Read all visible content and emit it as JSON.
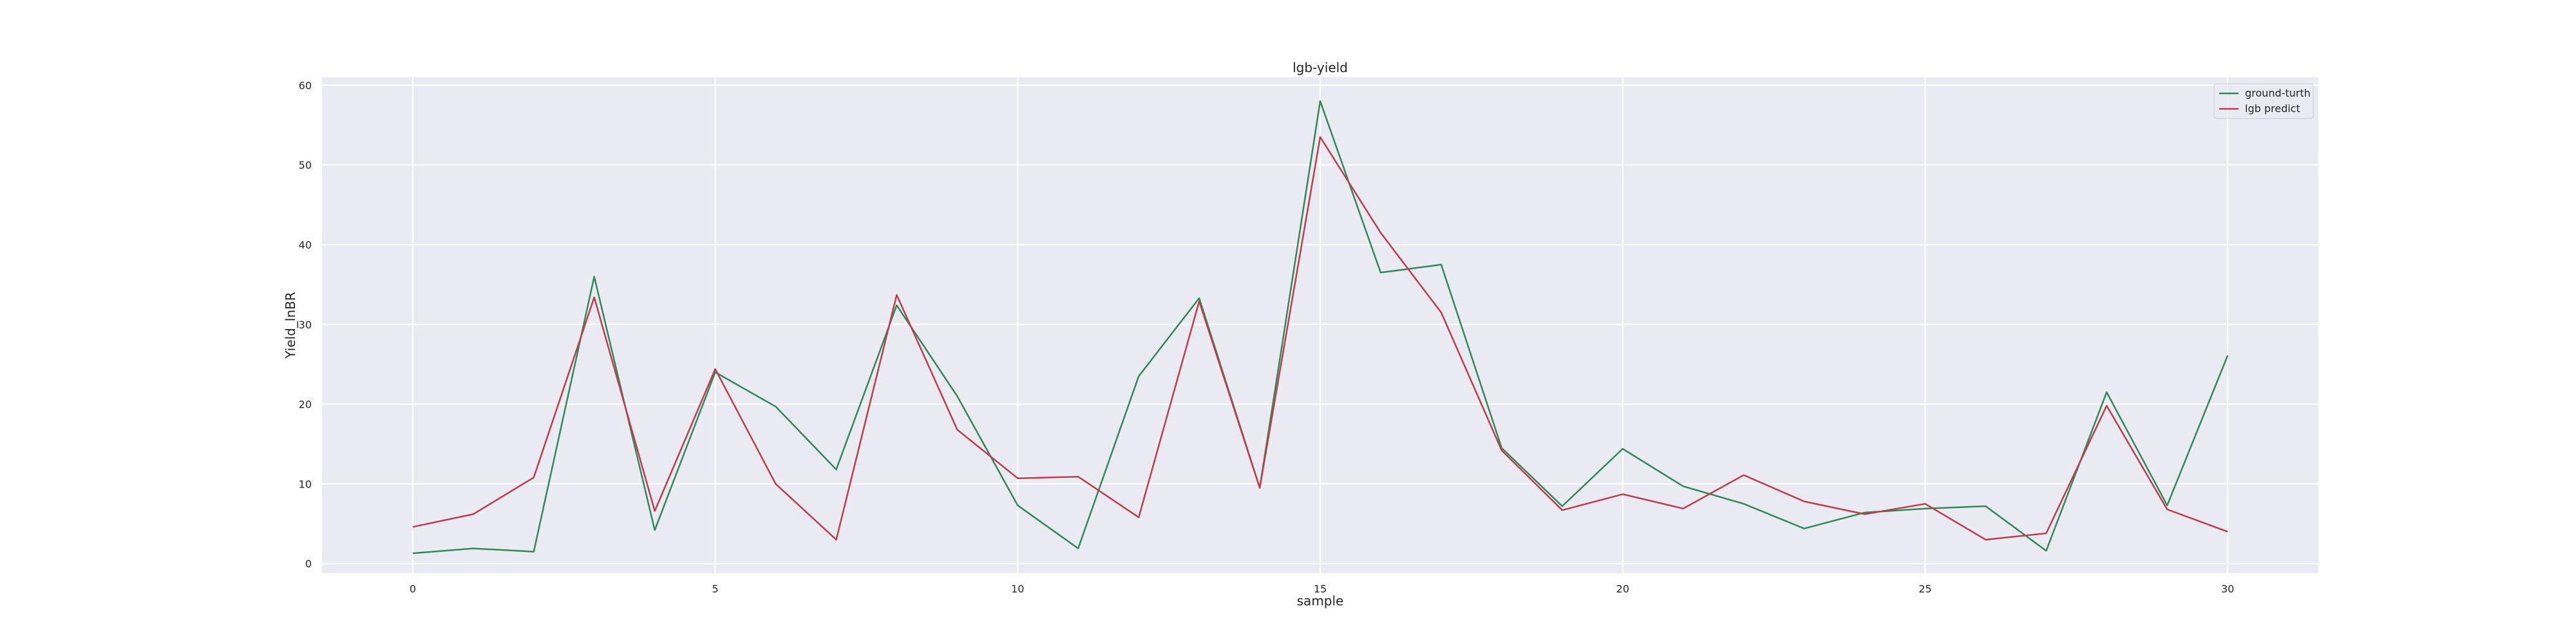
{
  "chart_data": {
    "type": "line",
    "title": "lgb-yield",
    "xlabel": "sample",
    "ylabel": "Yield_lnBR",
    "x": [
      0,
      1,
      2,
      3,
      4,
      5,
      6,
      7,
      8,
      9,
      10,
      11,
      12,
      13,
      14,
      15,
      16,
      17,
      18,
      19,
      20,
      21,
      22,
      23,
      24,
      25,
      26,
      27,
      28,
      29,
      30
    ],
    "xlim": [
      -1.5,
      31.5
    ],
    "ylim": [
      -1.2,
      61.0
    ],
    "xticks": [
      0,
      5,
      10,
      15,
      20,
      25,
      30
    ],
    "yticks": [
      0,
      10,
      20,
      30,
      40,
      50,
      60
    ],
    "grid": true,
    "legend_position": "top-right",
    "series": [
      {
        "name": "ground-turth",
        "color": "#2e8b57",
        "values": [
          1.3,
          1.9,
          1.5,
          36.0,
          4.2,
          24.0,
          19.7,
          11.8,
          32.4,
          21.0,
          7.3,
          1.9,
          23.5,
          33.3,
          9.5,
          58.0,
          36.5,
          37.5,
          14.5,
          7.2,
          14.4,
          9.7,
          7.5,
          4.4,
          6.4,
          6.9,
          7.2,
          1.6,
          21.5,
          7.3,
          26.1
        ]
      },
      {
        "name": "lgb predict",
        "color": "#c23b4b",
        "values": [
          4.6,
          6.2,
          10.8,
          33.4,
          6.6,
          24.4,
          10.0,
          3.0,
          33.7,
          16.8,
          10.7,
          10.9,
          5.8,
          32.9,
          9.5,
          53.5,
          41.5,
          31.5,
          14.2,
          6.7,
          8.7,
          6.9,
          11.1,
          7.8,
          6.2,
          7.5,
          3.0,
          3.8,
          19.8,
          6.8,
          4.0
        ]
      }
    ]
  }
}
